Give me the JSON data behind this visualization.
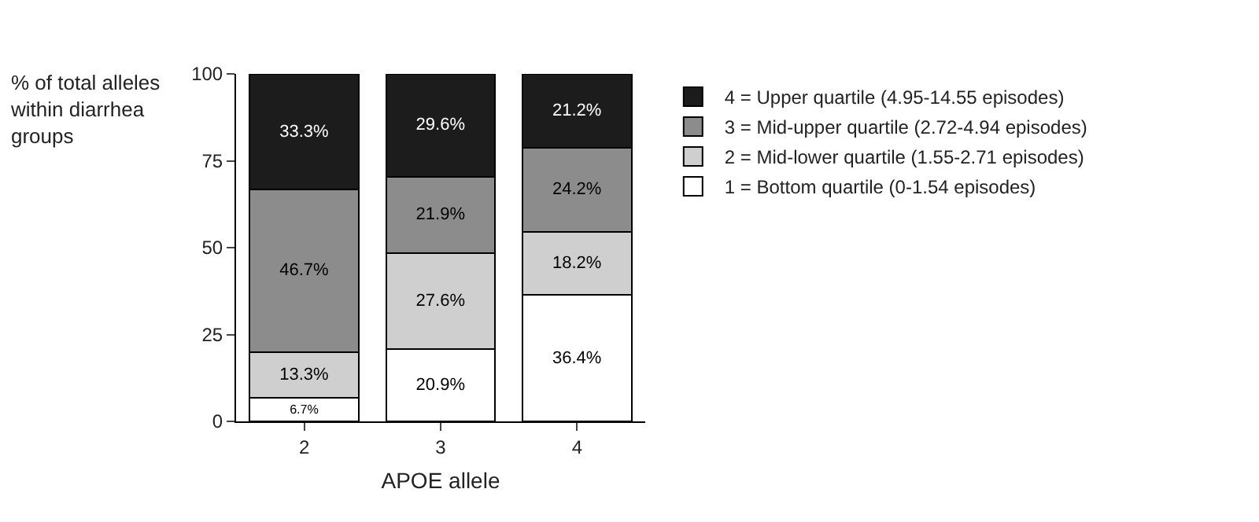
{
  "chart_data": {
    "type": "bar",
    "stacked": true,
    "xlabel": "APOE allele",
    "ylabel": "% of total alleles within diarrhea groups",
    "categories": [
      "2",
      "3",
      "4"
    ],
    "series": [
      {
        "name": "1 = Bottom quartile (0-1.54 episodes)",
        "color": "#ffffff",
        "values": [
          6.7,
          20.9,
          36.4
        ],
        "value_labels": [
          "6.7%",
          "20.9%",
          "36.4%"
        ]
      },
      {
        "name": "2 = Mid-lower quartile (1.55-2.71 episodes)",
        "color": "#cfcfcf",
        "values": [
          13.3,
          27.6,
          18.2
        ],
        "value_labels": [
          "13.3%",
          "27.6%",
          "18.2%"
        ]
      },
      {
        "name": "3 = Mid-upper quartile (2.72-4.94 episodes)",
        "color": "#8c8c8c",
        "values": [
          46.7,
          21.9,
          24.2
        ],
        "value_labels": [
          "46.7%",
          "21.9%",
          "24.2%"
        ]
      },
      {
        "name": "4 = Upper quartile (4.95-14.55 episodes)",
        "color": "#1c1c1c",
        "values": [
          33.3,
          29.6,
          21.2
        ],
        "value_labels": [
          "33.3%",
          "29.6%",
          "21.2%"
        ]
      }
    ],
    "ylim": [
      0,
      100
    ],
    "yticks": [
      0,
      25,
      50,
      75,
      100
    ],
    "grid": false,
    "legend": "top right"
  }
}
